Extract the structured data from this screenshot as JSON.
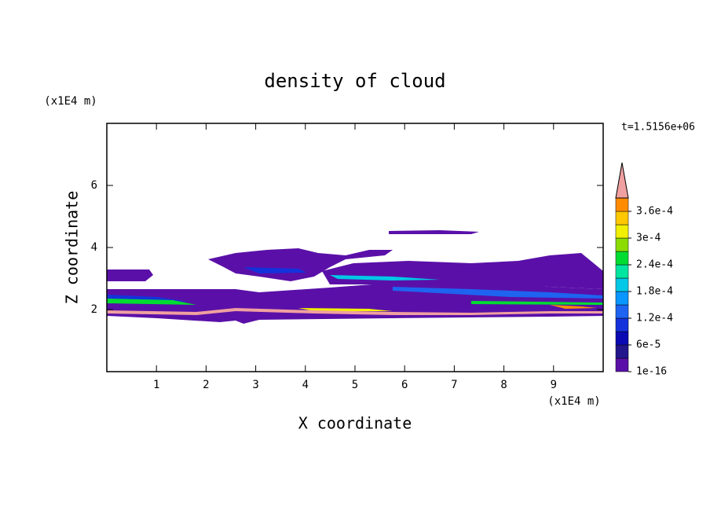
{
  "chart_data": {
    "type": "contour",
    "title": "density of cloud",
    "time_label": "t=1.5156e+06",
    "x_label": "X coordinate",
    "y_label": "Z coordinate",
    "x_unit": "(x1E4 m)",
    "y_unit": "(x1E4 m)",
    "xlim": [
      0,
      10
    ],
    "ylim": [
      0,
      8
    ],
    "xticks": [
      1,
      2,
      3,
      4,
      5,
      6,
      7,
      8,
      9
    ],
    "yticks": [
      2,
      4,
      6
    ],
    "levels": [
      1e-16,
      3e-05,
      6e-05,
      9e-05,
      0.00012,
      0.00015,
      0.00018,
      0.00021,
      0.00024,
      0.00027,
      0.0003,
      0.00033,
      0.00036,
      0.00039
    ],
    "colors": [
      "#5a10a8",
      "#23168c",
      "#0a0ab4",
      "#1432dc",
      "#1e64f0",
      "#0a96ff",
      "#00c8e6",
      "#00e6a0",
      "#00dc32",
      "#8cdc00",
      "#f0f000",
      "#ffc800",
      "#ff8c00",
      "#ff2800"
    ],
    "over_color": "#f0a0a0",
    "cticks": [
      {
        "value": 1e-16,
        "label": "1e-16"
      },
      {
        "value": 6e-05,
        "label": "6e-5"
      },
      {
        "value": 0.00012,
        "label": "1.2e-4"
      },
      {
        "value": 0.00018,
        "label": "1.8e-4"
      },
      {
        "value": 0.00024,
        "label": "2.4e-4"
      },
      {
        "value": 0.0003,
        "label": "3e-4"
      },
      {
        "value": 0.00036,
        "label": "3.6e-4"
      }
    ]
  }
}
